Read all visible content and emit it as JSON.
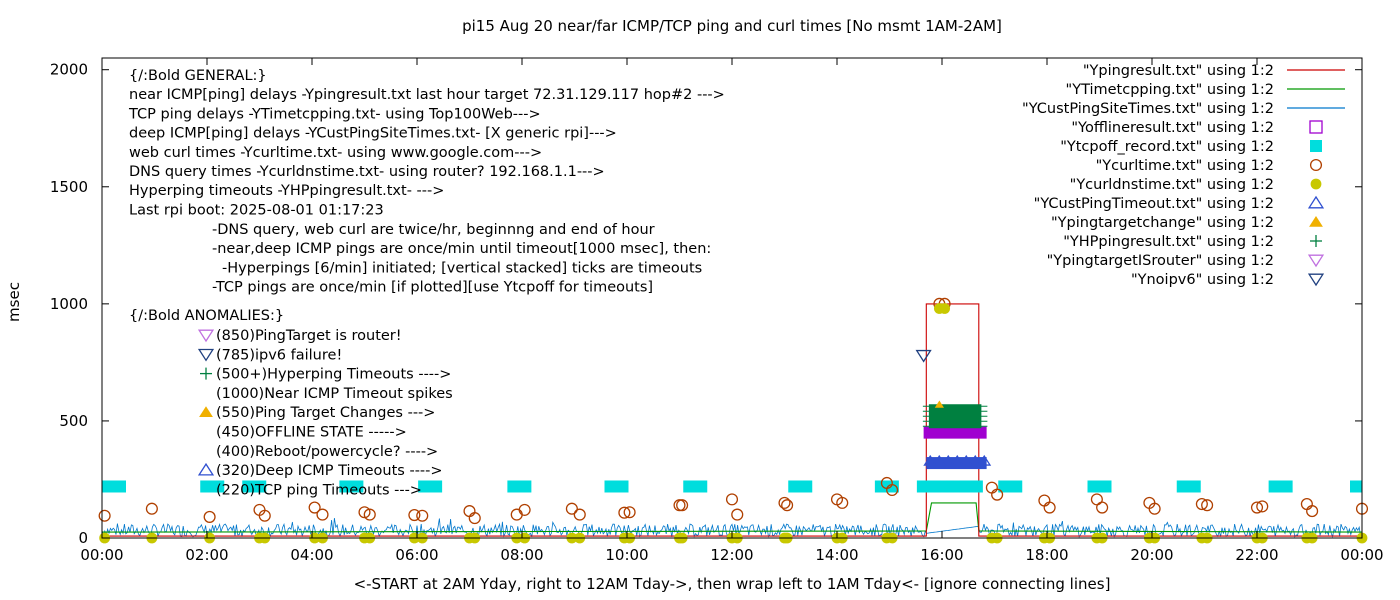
{
  "chart_data": {
    "type": "scatter",
    "title": "pi15 Aug 20  near/far ICMP/TCP ping and curl times [No msmt 1AM-2AM]",
    "xlabel": "<-START at 2AM Yday, right to 12AM Tday->, then wrap left to 1AM Tday<- [ignore connecting lines]",
    "ylabel": "msec",
    "xlim": [
      0,
      24
    ],
    "ylim": [
      0,
      2050
    ],
    "x_ticks": [
      {
        "v": 0,
        "label": "00:00"
      },
      {
        "v": 2,
        "label": "02:00"
      },
      {
        "v": 4,
        "label": "04:00"
      },
      {
        "v": 6,
        "label": "06:00"
      },
      {
        "v": 8,
        "label": "08:00"
      },
      {
        "v": 10,
        "label": "10:00"
      },
      {
        "v": 12,
        "label": "12:00"
      },
      {
        "v": 14,
        "label": "14:00"
      },
      {
        "v": 16,
        "label": "16:00"
      },
      {
        "v": 18,
        "label": "18:00"
      },
      {
        "v": 20,
        "label": "20:00"
      },
      {
        "v": 22,
        "label": "22:00"
      },
      {
        "v": 24,
        "label": "00:00"
      }
    ],
    "y_ticks": [
      {
        "v": 0,
        "label": "0"
      },
      {
        "v": 500,
        "label": "500"
      },
      {
        "v": 1000,
        "label": "1000"
      },
      {
        "v": 1500,
        "label": "1500"
      },
      {
        "v": 2000,
        "label": "2000"
      }
    ],
    "grid": false,
    "legend_position": "top-right",
    "legend": [
      {
        "label": "\"Ypingresult.txt\" using 1:2",
        "marker": "line",
        "color": "#cc0000"
      },
      {
        "label": "\"YTimetcpping.txt\" using 1:2",
        "marker": "line",
        "color": "#009900"
      },
      {
        "label": "\"YCustPingSiteTimes.txt\" using 1:2",
        "marker": "line",
        "color": "#0077cc"
      },
      {
        "label": "\"Yofflineresult.txt\" using 1:2",
        "marker": "open-square",
        "color": "#a000d0"
      },
      {
        "label": "\"Ytcpoff_record.txt\" using 1:2",
        "marker": "filled-square",
        "color": "#00dddd"
      },
      {
        "label": "\"Ycurltime.txt\" using 1:2",
        "marker": "open-circle",
        "color": "#b04000"
      },
      {
        "label": "\"Ycurldnstime.txt\" using 1:2",
        "marker": "filled-circle",
        "color": "#c8c800"
      },
      {
        "label": "\"YCustPingTimeout.txt\" using 1:2",
        "marker": "open-triangle-up",
        "color": "#3050d0"
      },
      {
        "label": "\"Ypingtargetchange\" using 1:2",
        "marker": "filled-triangle-up",
        "color": "#f0b000"
      },
      {
        "label": "\"YHPpingresult.txt\" using 1:2",
        "marker": "plus",
        "color": "#008040"
      },
      {
        "label": "\"YpingtargetISrouter\" using 1:2",
        "marker": "open-triangle-down",
        "color": "#c070e0"
      },
      {
        "label": "\"Ynoipv6\" using 1:2",
        "marker": "open-triangle-down",
        "color": "#204080"
      }
    ],
    "annotations": {
      "general": [
        "{/:Bold GENERAL:}",
        "near ICMP[ping] delays -Ypingresult.txt last hour target 72.31.129.117 hop#2 --->",
        "TCP ping delays -YTimetcpping.txt- using Top100Web--->",
        "deep ICMP[ping] delays -YCustPingSiteTimes.txt- [X generic rpi]--->",
        "web curl times -Ycurltime.txt- using www.google.com--->",
        "DNS query times -Ycurldnstime.txt- using router? 192.168.1.1--->",
        "Hyperping timeouts -YHPpingresult.txt- --->",
        "Last rpi boot: 2025-08-01 01:17:23"
      ],
      "notes": [
        "-DNS query, web curl are twice/hr, beginnng and end of hour",
        "-near,deep ICMP pings are once/min until timeout[1000 msec], then:",
        "  -Hyperpings [6/min] initiated; [vertical stacked] ticks are timeouts",
        "-TCP pings are once/min [if plotted][use Ytcpoff for timeouts]"
      ],
      "anomalies_heading": "{/:Bold ANOMALIES:}",
      "anomalies": [
        {
          "text": "(850)PingTarget is router!",
          "marker": "open-triangle-down",
          "color": "#c070e0"
        },
        {
          "text": "(785)ipv6 failure!",
          "marker": "open-triangle-down",
          "color": "#204080"
        },
        {
          "text": "(500+)Hyperping Timeouts ---->",
          "marker": "plus",
          "color": "#008040"
        },
        {
          "text": "(1000)Near ICMP Timeout spikes",
          "marker": "none",
          "color": ""
        },
        {
          "text": "(550)Ping Target Changes --->",
          "marker": "filled-triangle-up",
          "color": "#f0b000"
        },
        {
          "text": "(450)OFFLINE STATE ----->",
          "marker": "none",
          "color": ""
        },
        {
          "text": "(400)Reboot/powercycle? ---->",
          "marker": "none",
          "color": ""
        },
        {
          "text": "(320)Deep ICMP Timeouts ---->",
          "marker": "open-triangle-up",
          "color": "#3050d0"
        },
        {
          "text": "(220)TCP ping Timeouts --->",
          "marker": "none",
          "color": ""
        }
      ]
    },
    "series": [
      {
        "name": "\"Ypingresult.txt\" using 1:2",
        "kind": "line",
        "color": "#cc0000",
        "baseline": 8,
        "spike": [
          [
            15.7,
            8
          ],
          [
            15.7,
            1000
          ],
          [
            16.7,
            1000
          ],
          [
            16.7,
            8
          ]
        ]
      },
      {
        "name": "\"YTimetcpping.txt\" using 1:2",
        "kind": "line",
        "color": "#009900",
        "baseline": 25,
        "spike": [
          [
            15.7,
            30
          ],
          [
            15.8,
            150
          ],
          [
            16.65,
            150
          ],
          [
            16.7,
            30
          ]
        ]
      },
      {
        "name": "\"YCustPingSiteTimes.txt\" using 1:2",
        "kind": "noisy-line",
        "color": "#0077cc",
        "baseline_range": [
          5,
          60
        ]
      },
      {
        "name": "\"Yofflineresult.txt\" using 1:2",
        "kind": "band",
        "color": "#a000d0",
        "x_range": [
          15.65,
          16.85
        ],
        "y": 450
      },
      {
        "name": "\"Ytcpoff_record.txt\" using 1:2",
        "kind": "dashes",
        "color": "#00dddd",
        "y": 220,
        "x": [
          0.15,
          2.1,
          2.9,
          4.75,
          6.25,
          7.95,
          9.8,
          11.3,
          13.3,
          14.95,
          15.75,
          16.0,
          16.3,
          16.55,
          17.3,
          19.0,
          20.7,
          22.45,
          24.0
        ]
      },
      {
        "name": "\"Ycurltime.txt\" using 1:2",
        "kind": "points",
        "color": "#b04000",
        "points": [
          [
            0.05,
            95
          ],
          [
            0.95,
            125
          ],
          [
            2.05,
            90
          ],
          [
            3.0,
            120
          ],
          [
            3.1,
            95
          ],
          [
            4.05,
            130
          ],
          [
            4.2,
            100
          ],
          [
            5.0,
            110
          ],
          [
            5.1,
            100
          ],
          [
            5.95,
            98
          ],
          [
            6.1,
            95
          ],
          [
            7.0,
            115
          ],
          [
            7.1,
            85
          ],
          [
            7.9,
            100
          ],
          [
            8.05,
            120
          ],
          [
            8.95,
            125
          ],
          [
            9.1,
            100
          ],
          [
            9.95,
            108
          ],
          [
            10.05,
            110
          ],
          [
            11.0,
            140
          ],
          [
            11.05,
            140
          ],
          [
            12.0,
            165
          ],
          [
            12.1,
            100
          ],
          [
            13.0,
            150
          ],
          [
            13.05,
            140
          ],
          [
            14.0,
            165
          ],
          [
            14.1,
            150
          ],
          [
            14.95,
            235
          ],
          [
            15.05,
            205
          ],
          [
            15.95,
            1000
          ],
          [
            16.05,
            1000
          ],
          [
            16.95,
            215
          ],
          [
            17.05,
            185
          ],
          [
            17.95,
            160
          ],
          [
            18.05,
            130
          ],
          [
            18.95,
            165
          ],
          [
            19.05,
            130
          ],
          [
            19.95,
            150
          ],
          [
            20.05,
            125
          ],
          [
            20.95,
            145
          ],
          [
            21.05,
            140
          ],
          [
            22.0,
            130
          ],
          [
            22.1,
            135
          ],
          [
            22.95,
            145
          ],
          [
            23.05,
            115
          ],
          [
            24.0,
            125
          ]
        ]
      },
      {
        "name": "\"Ycurldnstime.txt\" using 1:2",
        "kind": "points",
        "color": "#c8c800",
        "points": [
          [
            0.05,
            0
          ],
          [
            0.95,
            0
          ],
          [
            2.05,
            0
          ],
          [
            3.0,
            0
          ],
          [
            3.1,
            0
          ],
          [
            4.05,
            0
          ],
          [
            4.2,
            0
          ],
          [
            5.0,
            0
          ],
          [
            5.1,
            0
          ],
          [
            5.95,
            0
          ],
          [
            6.1,
            0
          ],
          [
            7.0,
            0
          ],
          [
            7.1,
            0
          ],
          [
            7.9,
            0
          ],
          [
            8.05,
            0
          ],
          [
            8.95,
            0
          ],
          [
            9.1,
            0
          ],
          [
            9.95,
            0
          ],
          [
            10.05,
            0
          ],
          [
            11.0,
            0
          ],
          [
            11.05,
            0
          ],
          [
            12.0,
            0
          ],
          [
            12.1,
            0
          ],
          [
            13.0,
            0
          ],
          [
            13.05,
            0
          ],
          [
            14.0,
            0
          ],
          [
            14.1,
            0
          ],
          [
            14.95,
            0
          ],
          [
            15.05,
            0
          ],
          [
            15.95,
            980
          ],
          [
            16.05,
            980
          ],
          [
            16.95,
            0
          ],
          [
            17.05,
            0
          ],
          [
            17.95,
            0
          ],
          [
            18.05,
            0
          ],
          [
            18.95,
            0
          ],
          [
            19.05,
            0
          ],
          [
            19.95,
            0
          ],
          [
            20.05,
            0
          ],
          [
            20.95,
            0
          ],
          [
            21.05,
            0
          ],
          [
            22.0,
            0
          ],
          [
            22.1,
            0
          ],
          [
            22.95,
            0
          ],
          [
            23.05,
            0
          ],
          [
            24.0,
            0
          ]
        ]
      },
      {
        "name": "\"YCustPingTimeout.txt\" using 1:2",
        "kind": "band",
        "color": "#3050d0",
        "x_range": [
          15.7,
          16.85
        ],
        "y": 320
      },
      {
        "name": "\"Ypingtargetchange\" using 1:2",
        "kind": "points",
        "color": "#f0b000",
        "points": [
          [
            15.95,
            570
          ]
        ]
      },
      {
        "name": "\"YHPpingresult.txt\" using 1:2",
        "kind": "band",
        "color": "#008040",
        "x_range": [
          15.75,
          16.75
        ],
        "y": 520
      },
      {
        "name": "\"YpingtargetISrouter\" using 1:2",
        "kind": "points",
        "color": "#c070e0",
        "points": []
      },
      {
        "name": "\"Ynoipv6\" using 1:2",
        "kind": "points",
        "color": "#204080",
        "points": [
          [
            15.65,
            780
          ]
        ]
      }
    ]
  }
}
